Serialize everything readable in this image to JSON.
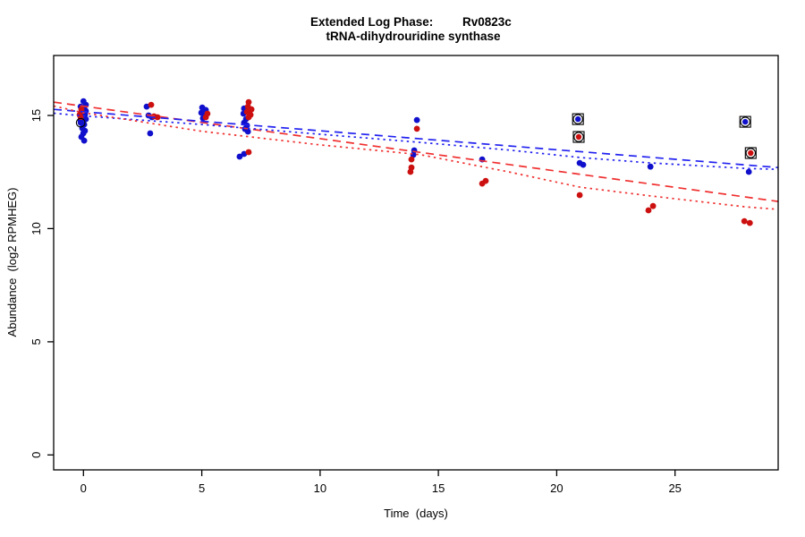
{
  "title": {
    "prefix": "Extended Log Phase:",
    "gene": "Rv0823c",
    "subtitle": "tRNA-dihydrouridine synthase"
  },
  "axes": {
    "xlabel": "Time  (days)",
    "ylabel": "Abundance  (log2 RPMHEG)"
  },
  "colors": {
    "blue_point": "#1010CC",
    "red_point": "#CC1010",
    "blue_line": "#2222F0",
    "red_line": "#F03030",
    "axis": "#000000",
    "flag_ring": "#000000",
    "background": "#FFFFFF"
  },
  "chart_data": {
    "type": "scatter",
    "title": "Extended Log Phase: Rv0823c — tRNA-dihydrouridine synthase",
    "xlabel": "Time (days)",
    "ylabel": "Abundance (log2 RPMHEG)",
    "grid": false,
    "legend": "none",
    "x_ticks": [
      0,
      5,
      10,
      15,
      20,
      25
    ],
    "y_ticks": [
      0,
      5,
      10,
      15
    ],
    "xlim": [
      -1.26,
      29.36
    ],
    "ylim": [
      -0.66,
      17.65
    ],
    "series": [
      {
        "name": "blue",
        "color": "#1010CC",
        "marker": "filled-circle",
        "points": [
          [
            0.0,
            15.63
          ],
          [
            0.1,
            15.47
          ],
          [
            -0.12,
            15.39
          ],
          [
            0.03,
            15.31
          ],
          [
            0.1,
            15.2
          ],
          [
            -0.09,
            15.11
          ],
          [
            0.06,
            15.03
          ],
          [
            -0.01,
            14.92
          ],
          [
            0.1,
            14.84
          ],
          [
            -0.12,
            14.76
          ],
          [
            0.03,
            14.6
          ],
          [
            -0.05,
            14.44
          ],
          [
            0.06,
            14.32
          ],
          [
            -0.01,
            14.21
          ],
          [
            -0.09,
            14.05
          ],
          [
            0.03,
            13.89
          ],
          [
            2.67,
            15.39
          ],
          [
            2.75,
            15.0
          ],
          [
            2.9,
            14.92
          ],
          [
            2.82,
            14.21
          ],
          [
            5.02,
            15.35
          ],
          [
            5.17,
            15.24
          ],
          [
            4.98,
            15.12
          ],
          [
            5.13,
            15.0
          ],
          [
            5.05,
            14.88
          ],
          [
            6.79,
            15.31
          ],
          [
            6.76,
            15.08
          ],
          [
            6.87,
            14.84
          ],
          [
            6.79,
            14.68
          ],
          [
            6.91,
            14.56
          ],
          [
            6.83,
            14.4
          ],
          [
            6.95,
            14.29
          ],
          [
            6.6,
            13.18
          ],
          [
            6.79,
            13.3
          ],
          [
            14.09,
            14.8
          ],
          [
            13.98,
            13.46
          ],
          [
            13.94,
            13.26
          ],
          [
            16.85,
            13.06
          ],
          [
            20.97,
            12.9
          ],
          [
            21.12,
            12.82
          ],
          [
            23.96,
            12.74
          ],
          [
            28.12,
            12.51
          ]
        ]
      },
      {
        "name": "red",
        "color": "#CC1010",
        "marker": "filled-circle",
        "points": [
          [
            -0.09,
            15.27
          ],
          [
            -0.16,
            15.03
          ],
          [
            -0.12,
            14.92
          ],
          [
            2.86,
            15.47
          ],
          [
            2.98,
            14.96
          ],
          [
            3.13,
            14.92
          ],
          [
            5.24,
            15.08
          ],
          [
            5.17,
            14.92
          ],
          [
            6.98,
            15.59
          ],
          [
            6.95,
            15.39
          ],
          [
            7.1,
            15.27
          ],
          [
            6.91,
            15.16
          ],
          [
            7.06,
            15.03
          ],
          [
            6.98,
            14.92
          ],
          [
            6.98,
            13.38
          ],
          [
            14.09,
            14.41
          ],
          [
            13.86,
            13.06
          ],
          [
            13.86,
            12.7
          ],
          [
            13.82,
            12.51
          ],
          [
            17.0,
            12.11
          ],
          [
            16.85,
            11.99
          ],
          [
            20.97,
            11.48
          ],
          [
            24.07,
            11.0
          ],
          [
            23.88,
            10.81
          ],
          [
            27.93,
            10.33
          ],
          [
            28.16,
            10.25
          ]
        ]
      }
    ],
    "flagged_points": [
      {
        "series": "blue",
        "day": 20.9,
        "value": 14.84
      },
      {
        "series": "red",
        "day": 20.93,
        "value": 14.05
      },
      {
        "series": "blue",
        "day": 27.97,
        "value": 14.72
      },
      {
        "series": "red",
        "day": 28.2,
        "value": 13.34
      }
    ],
    "ringed_points": [
      {
        "series": "blue",
        "day": -0.12,
        "value": 14.68
      }
    ],
    "fits": [
      {
        "name": "red-dashed-fit",
        "color": "#F03030",
        "style": "dashed",
        "points": [
          [
            -1.26,
            15.59
          ],
          [
            29.36,
            11.2
          ]
        ]
      },
      {
        "name": "blue-dashed-fit",
        "color": "#2222F0",
        "style": "dashed",
        "points": [
          [
            -1.26,
            15.27
          ],
          [
            29.36,
            12.7
          ]
        ]
      },
      {
        "name": "blue-dotted-fit",
        "color": "#2222F0",
        "style": "dotted",
        "points": [
          [
            -1.26,
            15.1
          ],
          [
            0,
            14.98
          ],
          [
            5,
            14.6
          ],
          [
            10,
            14.17
          ],
          [
            14.24,
            13.81
          ],
          [
            18,
            13.47
          ],
          [
            21,
            13.14
          ],
          [
            24,
            12.9
          ],
          [
            28,
            12.66
          ],
          [
            29.36,
            12.62
          ]
        ]
      },
      {
        "name": "red-dotted-fit",
        "color": "#F03030",
        "style": "dotted",
        "points": [
          [
            -1.26,
            15.42
          ],
          [
            0,
            15.12
          ],
          [
            5,
            14.3
          ],
          [
            10,
            13.7
          ],
          [
            14.24,
            13.27
          ],
          [
            18,
            12.5
          ],
          [
            21,
            11.83
          ],
          [
            24,
            11.44
          ],
          [
            28,
            10.96
          ],
          [
            29.36,
            10.85
          ]
        ]
      }
    ]
  }
}
